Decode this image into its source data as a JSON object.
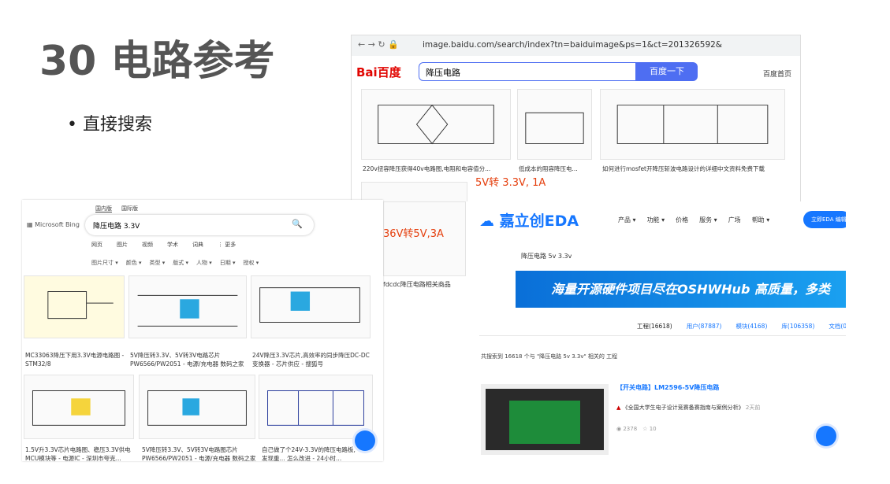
{
  "slide": {
    "title": "30 电路参考",
    "bullets": [
      "直接搜索"
    ]
  },
  "baidu": {
    "url": "image.baidu.com/search/index?tn=baiduimage&ps=1&ct=201326592&lm...",
    "logo": "Bai百度",
    "query": "降压电路",
    "button": "百度一下",
    "home": "百度首页",
    "captions": [
      "220v扭容降压获得40v电路图,电阻和电容值分...",
      "低成本的阻容降压电...",
      "如何进行mosfet开降压斩波电路设计的详细中文资料免费下载"
    ],
    "overlays": [
      "5V转 3.3V, 1A",
      "36V转5V,3A",
      "fdcdc降压电路相关商品"
    ]
  },
  "bing": {
    "regions": [
      "国内版",
      "国际版"
    ],
    "logo": "Microsoft Bing",
    "query": "降压电路 3.3V",
    "tabs": [
      "网页",
      "图片",
      "视频",
      "学术",
      "词典",
      "⋮ 更多"
    ],
    "filters": [
      "图片尺寸 ▾",
      "颜色 ▾",
      "类型 ▾",
      "版式 ▾",
      "人物 ▾",
      "日期 ▾",
      "授权 ▾"
    ],
    "captions": [
      "MC33063降压下用3.3V电源电路图 - STM32/8",
      "5V降压转3.3V、5V转3V电路芯片 PW6566/PW2051 - 电源/充电器 数码之家",
      "24V降压3.3V芯片,高效率的同步降压DC-DC变换器 - 芯片供应 - 搜狐号",
      "1.5V升3.3V芯片电路图、稳压3.3V供电MCU模块等 - 电源IC - 深圳市夸克...",
      "5V降压转3.3V、5V转3V电路图芯片 PW6566/PW2051 - 电源/充电器 数码之家",
      "自己做了个24V-3.3V的降压电路板,发现重... 怎么改进 - 24小时..."
    ]
  },
  "eda": {
    "logo": "嘉立创EDA",
    "nav": [
      "产品 ▾",
      "功能 ▾",
      "价格",
      "服务 ▾",
      "广场",
      "帮助 ▾"
    ],
    "cta": "立即EDA 编辑",
    "query": "降压电路 5v 3.3v",
    "banner": "海量开源硬件项目尽在OSHWHub  高质量，多类",
    "tabs": [
      "工程(16618)",
      "用户(87887)",
      "模块(4168)",
      "库(106358)",
      "文档(0)"
    ],
    "summary": "共搜索到 16618 个与 \"降压电路 5v 3.3v\" 相关的 工程",
    "result": {
      "title": "【开关电路】LM2596-5V降压电路",
      "source": "《全国大学生电子设计竞赛备赛指南与案例分析》",
      "time": "2天前",
      "views": "2378",
      "likes": "10"
    }
  }
}
